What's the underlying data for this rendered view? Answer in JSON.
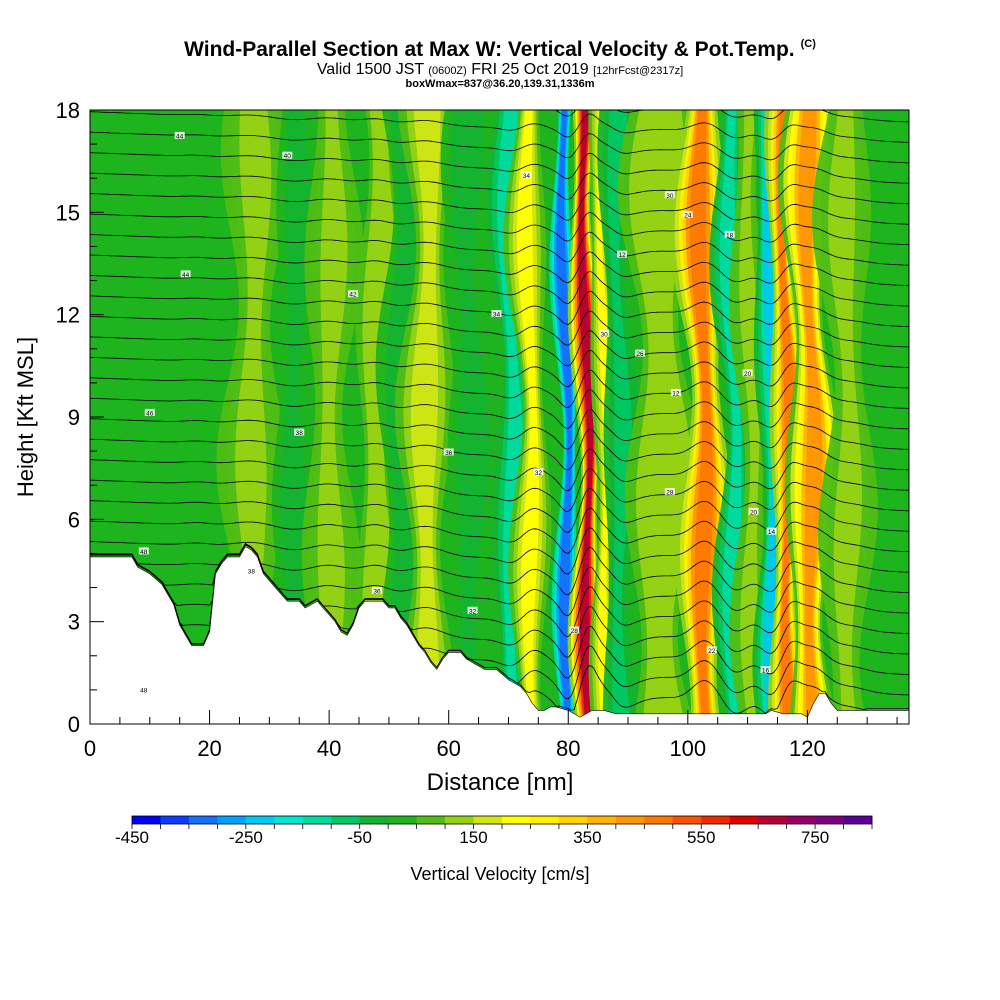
{
  "header": {
    "title": "Wind-Parallel Section at Max W: Vertical Velocity & Pot.Temp.",
    "copyright": "(C)",
    "valid_prefix": "Valid 1500 JST",
    "valid_utc": "(0600Z)",
    "valid_date": "FRI 25 Oct 2019",
    "forecast": "[12hrFcst@2317z]",
    "box_info": "boxWmax=837@36.20,139.31,1336m"
  },
  "chart_data": {
    "type": "heatmap",
    "xlabel": "Distance [nm]",
    "ylabel": "Height [Kft MSL]",
    "xlim": [
      0,
      137
    ],
    "ylim": [
      0,
      18
    ],
    "x_ticks": [
      0,
      20,
      40,
      60,
      80,
      100,
      120
    ],
    "y_ticks": [
      0,
      3,
      6,
      9,
      12,
      15,
      18
    ],
    "colorbar": {
      "label": "Vertical Velocity [cm/s]",
      "levels_start": -450,
      "levels_step": 50,
      "tick_labels": [
        "-450",
        "-250",
        "-50",
        "150",
        "350",
        "550",
        "750"
      ],
      "colors": [
        "#0000ff",
        "#0a3cff",
        "#1470ff",
        "#00a0ff",
        "#00c8f0",
        "#00e6d2",
        "#00dca0",
        "#00c864",
        "#14b432",
        "#1eb41e",
        "#50be14",
        "#96d214",
        "#d2e614",
        "#ffff00",
        "#fff000",
        "#ffd200",
        "#ffb400",
        "#ff9600",
        "#ff7800",
        "#ff5000",
        "#f02800",
        "#dc0000",
        "#b40032",
        "#960064",
        "#7d0082",
        "#5a0096"
      ]
    },
    "terrain_top_kft": [
      [
        0,
        4.9
      ],
      [
        7,
        4.9
      ],
      [
        8,
        4.6
      ],
      [
        10,
        4.4
      ],
      [
        12,
        4.1
      ],
      [
        14,
        3.5
      ],
      [
        15,
        2.9
      ],
      [
        16,
        2.6
      ],
      [
        17,
        2.3
      ],
      [
        19,
        2.3
      ],
      [
        20,
        2.7
      ],
      [
        21,
        4.4
      ],
      [
        22,
        4.7
      ],
      [
        23,
        4.9
      ],
      [
        25,
        4.9
      ],
      [
        26,
        5.2
      ],
      [
        27,
        5.1
      ],
      [
        28,
        4.9
      ],
      [
        29,
        4.4
      ],
      [
        31,
        4.0
      ],
      [
        33,
        3.6
      ],
      [
        35,
        3.6
      ],
      [
        36,
        3.4
      ],
      [
        38,
        3.6
      ],
      [
        40,
        3.2
      ],
      [
        41,
        3.0
      ],
      [
        42,
        2.7
      ],
      [
        43,
        2.6
      ],
      [
        44,
        2.9
      ],
      [
        45,
        3.4
      ],
      [
        46,
        3.6
      ],
      [
        49,
        3.6
      ],
      [
        50,
        3.4
      ],
      [
        51,
        3.4
      ],
      [
        52,
        3.1
      ],
      [
        53,
        2.9
      ],
      [
        54,
        2.6
      ],
      [
        55,
        2.3
      ],
      [
        56,
        2.1
      ],
      [
        57,
        1.8
      ],
      [
        58,
        1.6
      ],
      [
        59,
        1.9
      ],
      [
        60,
        2.1
      ],
      [
        62,
        2.1
      ],
      [
        63,
        1.9
      ],
      [
        64,
        1.8
      ],
      [
        66,
        1.6
      ],
      [
        68,
        1.6
      ],
      [
        70,
        1.3
      ],
      [
        72,
        1.1
      ],
      [
        73,
        0.9
      ],
      [
        74,
        0.6
      ],
      [
        75,
        0.4
      ],
      [
        76,
        0.4
      ],
      [
        77,
        0.5
      ],
      [
        78,
        0.5
      ],
      [
        80,
        0.4
      ],
      [
        82,
        0.2
      ],
      [
        84,
        0.4
      ],
      [
        86,
        0.4
      ],
      [
        88,
        0.3
      ],
      [
        92,
        0.3
      ],
      [
        100,
        0.3
      ],
      [
        105,
        0.3
      ],
      [
        110,
        0.3
      ],
      [
        113,
        0.3
      ],
      [
        114,
        0.4
      ],
      [
        116,
        0.3
      ],
      [
        119,
        0.3
      ],
      [
        120,
        0.2
      ],
      [
        121,
        0.6
      ],
      [
        122,
        0.9
      ],
      [
        123,
        0.9
      ],
      [
        124,
        0.6
      ],
      [
        125,
        0.4
      ],
      [
        126,
        0.4
      ],
      [
        137,
        0.4
      ]
    ],
    "isentrope_labels": [
      "48",
      "48",
      "46",
      "44",
      "44",
      "38",
      "38",
      "42",
      "40",
      "36",
      "36",
      "34",
      "34",
      "32",
      "32",
      "30",
      "30",
      "28",
      "28",
      "26",
      "24",
      "22",
      "20",
      "20",
      "18",
      "16",
      "14",
      "12",
      "12"
    ]
  },
  "features": {
    "velocity_bands": [
      {
        "x": 18,
        "w": 2.5,
        "val": 60
      },
      {
        "x": 27,
        "w": 3.5,
        "val": 130
      },
      {
        "x": 34,
        "w": 2.5,
        "val": -40
      },
      {
        "x": 40,
        "w": 3,
        "val": 140
      },
      {
        "x": 48,
        "w": 2.5,
        "val": 190
      },
      {
        "x": 52,
        "w": 3,
        "val": -40
      },
      {
        "x": 56,
        "w": 3,
        "val": 200
      },
      {
        "x": 64,
        "w": 3,
        "val": -30
      },
      {
        "x": 71,
        "w": 2.2,
        "val": -180
      },
      {
        "x": 74,
        "w": 2,
        "val": 280
      },
      {
        "x": 80,
        "w": 1.4,
        "val": -400
      },
      {
        "x": 83.5,
        "w": 1.5,
        "val": 800
      },
      {
        "x": 86.5,
        "w": 1.5,
        "val": 280
      },
      {
        "x": 89,
        "w": 2,
        "val": -120
      },
      {
        "x": 96,
        "w": 4,
        "val": 180
      },
      {
        "x": 103,
        "w": 2.5,
        "val": 560
      },
      {
        "x": 108,
        "w": 2,
        "val": -180
      },
      {
        "x": 111,
        "w": 2,
        "val": 140
      },
      {
        "x": 114.5,
        "w": 1.8,
        "val": -260
      },
      {
        "x": 117,
        "w": 1.8,
        "val": 560
      },
      {
        "x": 121,
        "w": 2.5,
        "val": 500
      },
      {
        "x": 127,
        "w": 3,
        "val": 130
      }
    ]
  }
}
